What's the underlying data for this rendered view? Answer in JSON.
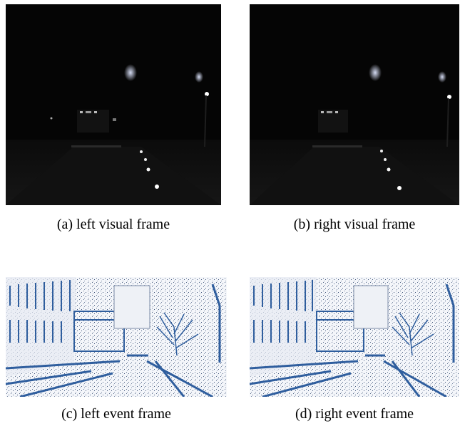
{
  "figure": {
    "panels": [
      {
        "caption": "(a) left visual frame",
        "kind": "visual"
      },
      {
        "caption": "(b) right visual frame",
        "kind": "visual"
      },
      {
        "caption": "(c) left event frame",
        "kind": "event"
      },
      {
        "caption": "(d) right event frame",
        "kind": "event"
      }
    ]
  },
  "colors": {
    "visual_background": "#050505",
    "event_background": "#f4f6fa",
    "event_accent": "#2f5e9e"
  }
}
